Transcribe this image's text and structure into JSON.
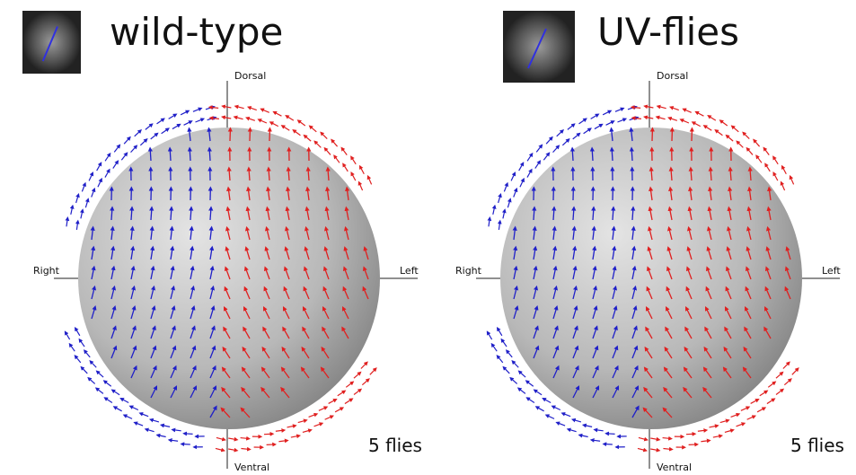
{
  "panels": [
    {
      "title": "wild-type",
      "dorsal": "Dorsal",
      "ventral": "Ventral",
      "right": "Right",
      "left": "Left",
      "count": "5 flies"
    },
    {
      "title": "UV-flies",
      "dorsal": "Dorsal",
      "ventral": "Ventral",
      "right": "Right",
      "left": "Left",
      "count": "5 flies"
    }
  ]
}
